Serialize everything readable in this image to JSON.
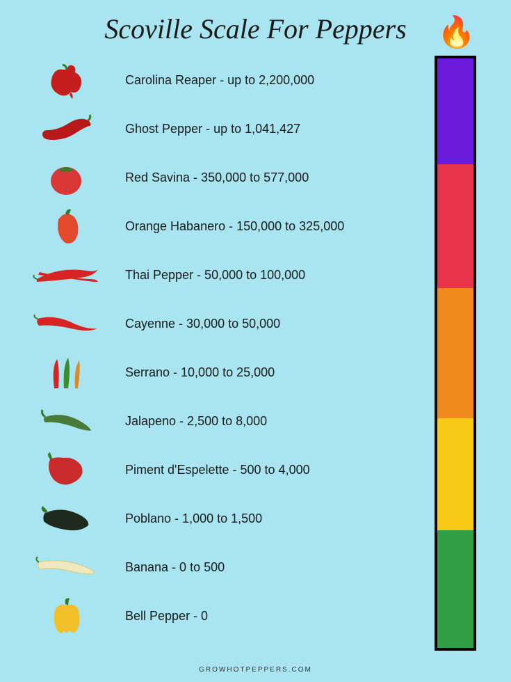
{
  "title": "Scoville Scale For Peppers",
  "background_color": "#a8e5f0",
  "title_fontsize": 40,
  "row_fontsize": 18,
  "text_color": "#1a1a1a",
  "peppers": [
    {
      "name": "Carolina Reaper",
      "shu": "up to 2,200,000",
      "icon": "carolina-reaper",
      "color": "#c41e1e"
    },
    {
      "name": "Ghost Pepper",
      "shu": "up to 1,041,427",
      "icon": "ghost-pepper",
      "color": "#b81818"
    },
    {
      "name": "Red Savina",
      "shu": "350,000 to 577,000",
      "icon": "red-savina",
      "color": "#d93636"
    },
    {
      "name": "Orange Habanero",
      "shu": "150,000 to 325,000",
      "icon": "habanero",
      "color": "#e24a2e"
    },
    {
      "name": "Thai Pepper",
      "shu": "50,000 to 100,000",
      "icon": "thai-pepper",
      "color": "#d62424"
    },
    {
      "name": "Cayenne",
      "shu": "30,000 to 50,000",
      "icon": "cayenne",
      "color": "#d62424"
    },
    {
      "name": "Serrano",
      "shu": "10,000 to 25,000",
      "icon": "serrano",
      "color": "#3a8c2e"
    },
    {
      "name": "Jalapeno",
      "shu": "2,500 to 8,000",
      "icon": "jalapeno",
      "color": "#4a7a3a"
    },
    {
      "name": "Piment d'Espelette",
      "shu": "500 to 4,000",
      "icon": "espelette",
      "color": "#c92a2a"
    },
    {
      "name": "Poblano",
      "shu": "1,000 to 1,500",
      "icon": "poblano",
      "color": "#1f2a1f"
    },
    {
      "name": "Banana",
      "shu": "0 to 500",
      "icon": "banana-pepper",
      "color": "#f2e8c0"
    },
    {
      "name": "Bell Pepper",
      "shu": "0",
      "icon": "bell-pepper",
      "color": "#f2c029"
    }
  ],
  "thermometer": {
    "border_color": "#000000",
    "border_width": 4,
    "segments": [
      {
        "color": "#6a1bdb",
        "height_pct": 18
      },
      {
        "color": "#e8344a",
        "height_pct": 21
      },
      {
        "color": "#f08a1d",
        "height_pct": 22
      },
      {
        "color": "#f5c915",
        "height_pct": 19
      },
      {
        "color": "#2f9e44",
        "height_pct": 20
      }
    ]
  },
  "footer": "GROWHOTPEPPERS.COM"
}
